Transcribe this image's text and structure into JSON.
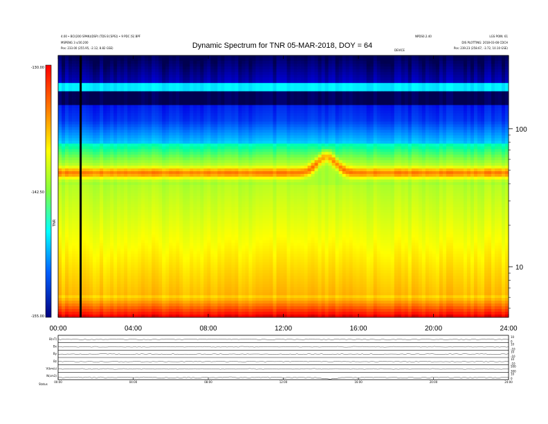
{
  "header": {
    "title": "Dynamic Spectrum for TNR 05-MAR-2018, DOY = 64",
    "left_line1": "4.00 • BCI(200 SPAN)(DSP) (TDS B [SPS]) • 9 PDC [S] BPF",
    "left_line2": "MSPENG 3 s/30.200",
    "left_line3": "Pos: 233.00 (255.95, -2.12, 8.82 GSE)",
    "mid_right_line1": "NPDS0.2.40",
    "right_line1": "LGS POIN: 61",
    "right_line2": "DIS PLOTTING: 2018-03-08 CDCH",
    "right_line3": "Pos: 239.23 (258.67, -3.72, 10.10 GSE)",
    "small_label": "DEVICE"
  },
  "colorbar": {
    "label": "TNR",
    "unit_mark": "dB",
    "ticks": [
      "-130.00",
      "-142.50",
      "-155.00"
    ]
  },
  "chart_data": [
    {
      "type": "heatmap",
      "title": "Dynamic Spectrum for TNR 05-MAR-2018, DOY = 64",
      "x_ticks": [
        "00:00",
        "04:00",
        "08:00",
        "12:00",
        "16:00",
        "20:00",
        "24:00"
      ],
      "x_range_hours": [
        0,
        24
      ],
      "y_scale": "log",
      "y_ticks": [
        "100",
        "10"
      ],
      "y_tick_values": [
        100,
        10
      ],
      "y_range": [
        4.3,
        340
      ],
      "z_range_db": [
        -155,
        -130
      ],
      "colormap": [
        "#000080",
        "#0000ff",
        "#0080ff",
        "#00ffff",
        "#80ff80",
        "#ffff00",
        "#ff8000",
        "#ff0000"
      ],
      "event_marker_hour": 1.2,
      "bright_feature_hour": 14.3,
      "grid": false
    },
    {
      "type": "line",
      "title": "",
      "x_range_hours": [
        0,
        24
      ],
      "x_ticks": [
        "00:00",
        "04:00",
        "08:00",
        "12:00",
        "16:00",
        "20:00",
        "24:00"
      ],
      "panels": [
        {
          "label": "B(nT)",
          "left_tick_top": "5",
          "left_tick_bottom": "0",
          "right_tick_top": "10",
          "right_tick_bottom": "0"
        },
        {
          "label": "Bx",
          "left_tick_top": "10",
          "left_tick_bottom": "-10",
          "right_tick_top": "10",
          "right_tick_bottom": "-10"
        },
        {
          "label": "By",
          "left_tick_top": "10",
          "left_tick_bottom": "-10",
          "right_tick_top": "10",
          "right_tick_bottom": "-10"
        },
        {
          "label": "Bz",
          "left_tick_top": "10",
          "left_tick_bottom": "-10",
          "right_tick_top": "10",
          "right_tick_bottom": "-10"
        },
        {
          "label": "V(km/s)",
          "left_tick_top": "500",
          "left_tick_bottom": "300",
          "right_tick_top": "500",
          "right_tick_bottom": "300"
        },
        {
          "label": "N(cm3)",
          "left_tick_top": "10",
          "left_tick_bottom": "0",
          "right_tick_top": "10",
          "right_tick_bottom": "0"
        }
      ],
      "footer_label": "Status"
    }
  ]
}
